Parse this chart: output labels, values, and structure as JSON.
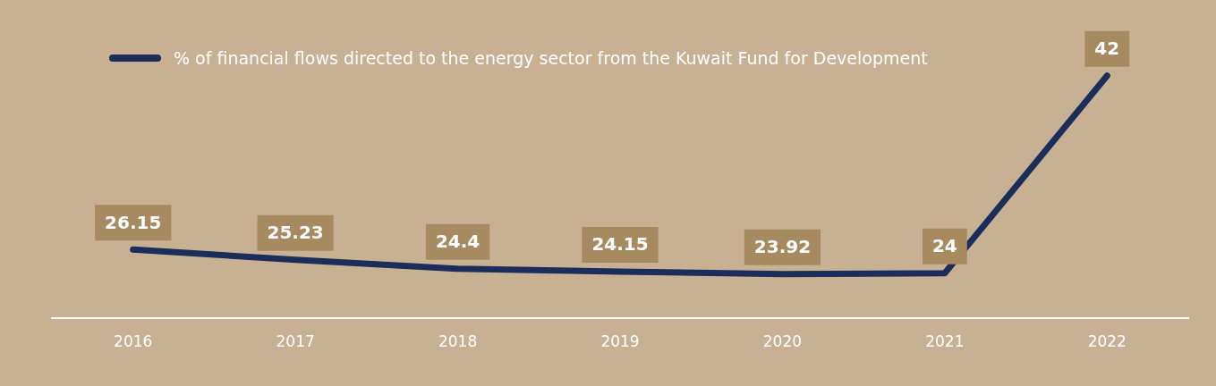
{
  "chart_data": {
    "type": "line",
    "categories": [
      "2016",
      "2017",
      "2018",
      "2019",
      "2020",
      "2021",
      "2022"
    ],
    "series": [
      {
        "name": "% of financial flows directed to the energy sector from the Kuwait Fund for Development",
        "color": "#1b2d5b",
        "values": [
          26.15,
          25.23,
          24.4,
          24.15,
          23.92,
          24,
          42
        ]
      }
    ],
    "data_labels": true,
    "legend": "top left",
    "grid": false,
    "marker": "none",
    "line_style": "solid",
    "relative": false
  }
}
